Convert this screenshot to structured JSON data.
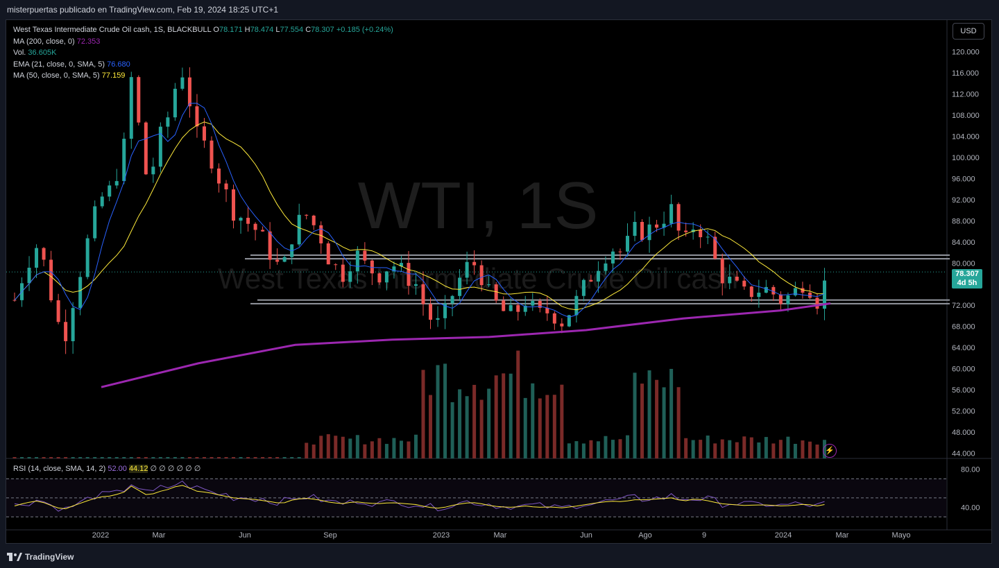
{
  "header": {
    "credit": "misterpuertas publicado en TradingView.com, Feb 19, 2024 18:25 UTC+1"
  },
  "toolbar": {
    "currency": "USD"
  },
  "legend": {
    "symbol": "West Texas Intermediate Crude Oil cash, 1S, BLACKBULL",
    "ohlc": {
      "o_label": "O",
      "o": "78.171",
      "h_label": "H",
      "h": "78.474",
      "l_label": "L",
      "l": "77.554",
      "c_label": "C",
      "c": "78.307",
      "chg": "+0.185 (+0.24%)"
    },
    "ma200": {
      "label": "MA (200, close, 0)",
      "value": "72.353"
    },
    "vol": {
      "label": "Vol.",
      "value": "36.605K"
    },
    "ema21": {
      "label": "EMA (21, close, 0, SMA, 5)",
      "value": "76.680"
    },
    "ma50": {
      "label": "MA (50, close, 0, SMA, 5)",
      "value": "77.159"
    }
  },
  "rsi_legend": {
    "label": "RSI (14, close, SMA, 14, 2)",
    "rsi": "52.00",
    "sma": "44.12",
    "empties": "∅ ∅ ∅ ∅ ∅ ∅"
  },
  "price_tag": {
    "price": "78.307",
    "countdown": "4d 5h"
  },
  "watermark": {
    "ticker": "WTI, 1S",
    "name": "West Texas Intermediate Crude Oil cash"
  },
  "footer": {
    "brand": "TradingView"
  },
  "colors": {
    "up": "#26a69a",
    "down": "#ef5350",
    "ma200": "#9c27b0",
    "ema21": "#2962ff",
    "ma50": "#ffeb3b",
    "rsi": "#7e57c2"
  },
  "chart_data": {
    "type": "candlestick",
    "title": "West Texas Intermediate Crude Oil cash, 1S, BLACKBULL",
    "y_ticks": [
      "120.000",
      "116.000",
      "112.000",
      "108.000",
      "104.000",
      "100.000",
      "96.000",
      "92.000",
      "88.000",
      "84.000",
      "80.000",
      "76.000",
      "72.000",
      "68.000",
      "64.000",
      "60.000",
      "56.000",
      "52.000",
      "48.000",
      "44.000"
    ],
    "ylim": [
      43,
      126
    ],
    "x_ticks": [
      "2022",
      "Mar",
      "Jun",
      "Sep",
      "2023",
      "Mar",
      "Jun",
      "Ago",
      "9",
      "2024",
      "Mar",
      "Mayo"
    ],
    "rsi_ticks": [
      "80.00",
      "40.00"
    ],
    "last_price": 78.307,
    "key_levels": [
      81.5,
      80.8,
      73.0,
      72.3
    ],
    "ma200_path": [
      [
        2022.25,
        56.5
      ],
      [
        2022.5,
        61
      ],
      [
        2022.75,
        64.5
      ],
      [
        2023.0,
        65.5
      ],
      [
        2023.25,
        66
      ],
      [
        2023.5,
        67.3
      ],
      [
        2023.75,
        69.5
      ],
      [
        2024.0,
        71
      ],
      [
        2024.13,
        72.35
      ]
    ],
    "rsi_range": [
      20,
      90
    ]
  }
}
